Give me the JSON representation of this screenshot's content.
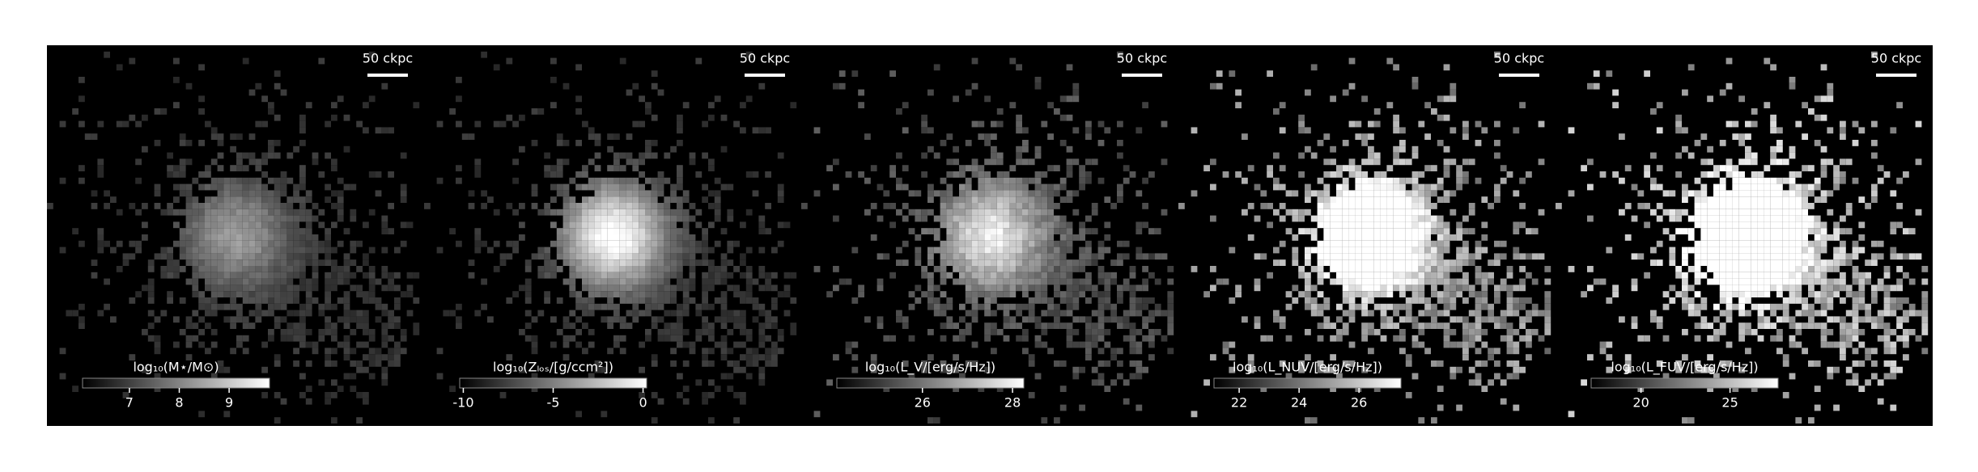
{
  "chart_data": [
    {
      "type": "image",
      "scale_bar_label": "50 ckpc",
      "colorbar_label": "log₁₀(M⋆/M⊙)",
      "clim": [
        6.06,
        9.81
      ],
      "ticks": [
        7,
        8,
        9
      ]
    },
    {
      "type": "image",
      "scale_bar_label": "50 ckpc",
      "colorbar_label": "log₁₀(Zₗₒₛ/[g/ccm²])",
      "clim": [
        -10.2,
        0.2
      ],
      "ticks": [
        -10,
        -5,
        0
      ]
    },
    {
      "type": "image",
      "scale_bar_label": "50 ckpc",
      "colorbar_label": "log₁₀(L_V/[erg/s/Hz])",
      "clim": [
        24.1,
        28.25
      ],
      "ticks": [
        26,
        28
      ]
    },
    {
      "type": "image",
      "scale_bar_label": "50 ckpc",
      "colorbar_label": "log₁₀(L_NUV/[erg/s/Hz])",
      "clim": [
        21.16,
        27.4
      ],
      "ticks": [
        22,
        24,
        26
      ]
    },
    {
      "type": "image",
      "scale_bar_label": "50 ckpc",
      "colorbar_label": "log₁₀(L_FUV/[erg/s/Hz])",
      "clim": [
        17.2,
        27.7
      ],
      "ticks": [
        20,
        25
      ]
    }
  ]
}
